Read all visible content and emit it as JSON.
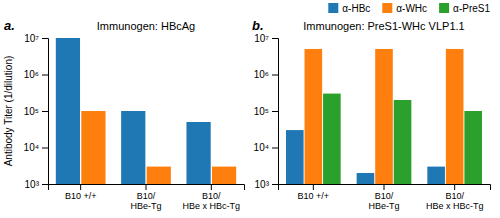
{
  "chart_data": [
    {
      "type": "bar",
      "title": "Immunogen: HBcAg",
      "annotations": [
        {
          "text": "a."
        }
      ],
      "ylabel": "Antibody Titer (1/dilution)",
      "categories": [
        "B10 +/+",
        "B10/\nHBe-Tg",
        "B10/\nHBe x HBc-Tg"
      ],
      "series": [
        {
          "name": "α-HBc",
          "values": [
            10000000.0,
            100000.0,
            50000.0
          ]
        },
        {
          "name": "α-WHc",
          "values": [
            100000.0,
            3000.0,
            3000.0
          ]
        }
      ],
      "log": "y",
      "ylim": [
        1000,
        10000000
      ],
      "yticks": [
        {
          "value": 1000,
          "label": "10³"
        },
        {
          "value": 10000,
          "label": "10⁴"
        },
        {
          "value": 100000,
          "label": "10⁵"
        },
        {
          "value": 1000000,
          "label": "10⁶"
        },
        {
          "value": 10000000,
          "label": "10⁷"
        }
      ]
    },
    {
      "type": "bar",
      "title": "Immunogen: PreS1-WHc VLP1.1",
      "annotations": [
        {
          "text": "b."
        }
      ],
      "categories": [
        "B10 +/+",
        "B10/\nHBe-Tg",
        "B10/\nHBe x HBc-Tg"
      ],
      "series": [
        {
          "name": "α-HBc",
          "values": [
            30000.0,
            2000.0,
            3000.0
          ]
        },
        {
          "name": "α-WHc",
          "values": [
            5000000.0,
            5000000.0,
            5000000.0
          ]
        },
        {
          "name": "α-PreS1",
          "values": [
            300000.0,
            200000.0,
            100000.0
          ]
        }
      ],
      "log": "y",
      "legend": "top",
      "ylim": [
        1000,
        10000000
      ],
      "yticks": [
        {
          "value": 1000,
          "label": "10³"
        },
        {
          "value": 10000,
          "label": "10⁴"
        },
        {
          "value": 100000,
          "label": "10⁵"
        },
        {
          "value": 1000000,
          "label": "10⁶"
        },
        {
          "value": 10000000,
          "label": "10⁷"
        }
      ]
    }
  ]
}
